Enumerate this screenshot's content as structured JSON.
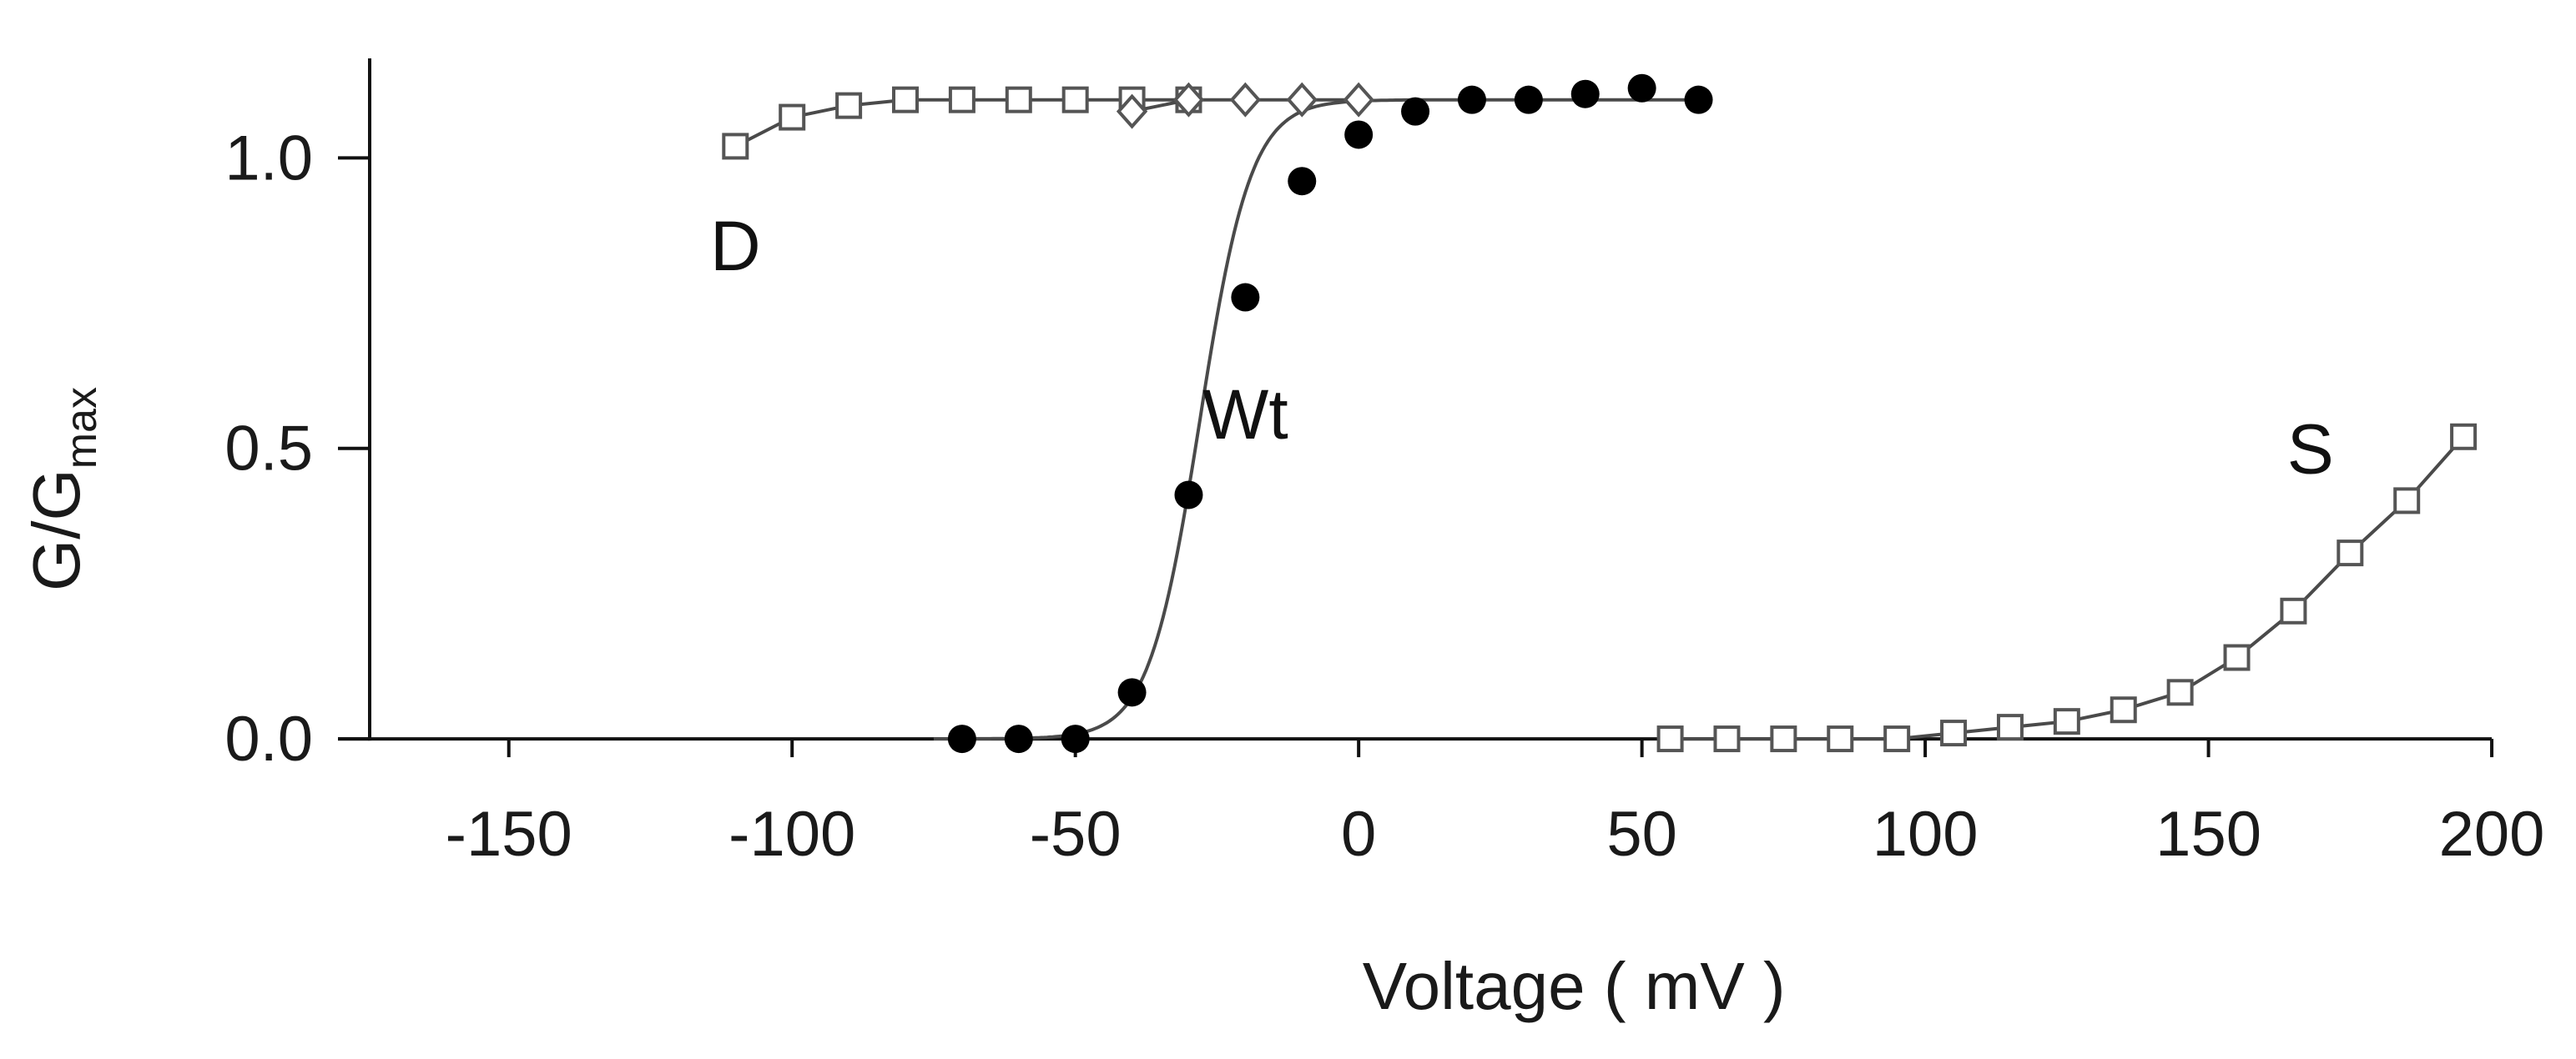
{
  "chart_data": {
    "type": "scatter",
    "xlabel": "Voltage ( mV )",
    "ylabel_main": "G/G",
    "ylabel_sub": "max",
    "xlim": [
      -175,
      205
    ],
    "ylim": [
      -0.02,
      1.2
    ],
    "x_ticks": [
      -150,
      -100,
      -50,
      0,
      50,
      100,
      150,
      200
    ],
    "x_tick_labels": [
      "-150",
      "-100",
      "-50",
      "0",
      "50",
      "100",
      "150",
      "200"
    ],
    "y_ticks": [
      0,
      0.5,
      1
    ],
    "y_tick_labels": [
      "0.0",
      "0.5",
      "1.0"
    ],
    "grid": false,
    "legend": "none (inline labels)",
    "series": [
      {
        "name": "Wt",
        "marker": "filled-circle",
        "color": "#000000",
        "x": [
          -70,
          -60,
          -50,
          -40,
          -30,
          -20,
          -10,
          0,
          10,
          20,
          30,
          40,
          50,
          60
        ],
        "y": [
          0.0,
          0.0,
          0.0,
          0.08,
          0.42,
          0.76,
          0.96,
          1.04,
          1.08,
          1.1,
          1.1,
          1.11,
          1.12,
          1.1
        ],
        "fit": "boltzmann",
        "fit_params": {
          "v_half": -28,
          "slope": 4.5,
          "max": 1.1
        }
      },
      {
        "name": "D",
        "marker": "open-square",
        "color": "#555555",
        "x": [
          -110,
          -100,
          -90,
          -80,
          -70,
          -60,
          -50,
          -40,
          -30
        ],
        "y": [
          1.02,
          1.07,
          1.09,
          1.1,
          1.1,
          1.1,
          1.1,
          1.1,
          1.1
        ],
        "fit": "line"
      },
      {
        "name": "D",
        "marker": "open-diamond",
        "color": "#555555",
        "x": [
          -40,
          -30,
          -20,
          -10,
          0
        ],
        "y": [
          1.08,
          1.1,
          1.1,
          1.1,
          1.1
        ],
        "fit": "line"
      },
      {
        "name": "S",
        "marker": "open-square",
        "color": "#555555",
        "x": [
          55,
          65,
          75,
          85,
          95,
          105,
          115,
          125,
          135,
          145,
          155,
          165,
          175,
          185,
          195
        ],
        "y": [
          0.0,
          0.0,
          0.0,
          0.0,
          0.0,
          0.01,
          0.02,
          0.03,
          0.05,
          0.08,
          0.14,
          0.22,
          0.32,
          0.41,
          0.52
        ],
        "fit": "line"
      }
    ],
    "annotations": [
      {
        "text": "D",
        "x": -110,
        "y": 0.85
      },
      {
        "text": "Wt",
        "x": -20,
        "y": 0.56
      },
      {
        "text": "S",
        "x": 168,
        "y": 0.5
      }
    ]
  }
}
